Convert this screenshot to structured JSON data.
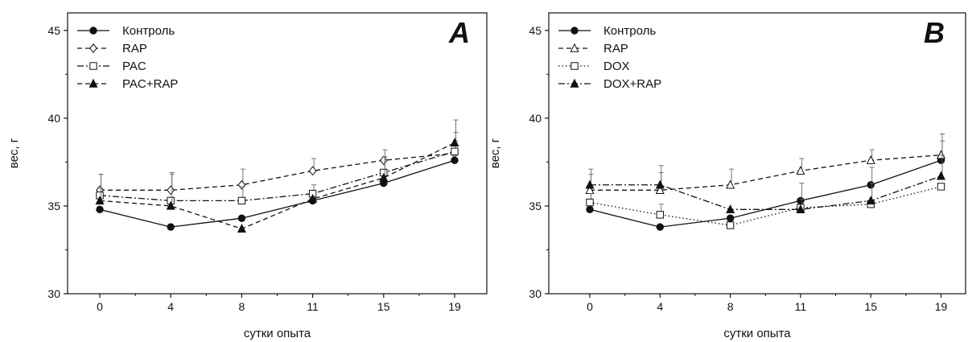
{
  "chart_data": [
    {
      "type": "line",
      "panel_label": "A",
      "xlabel": "сутки опыта",
      "ylabel": "вес, г",
      "categories": [
        "0",
        "4",
        "8",
        "11",
        "15",
        "19"
      ],
      "ylim": [
        30,
        46
      ],
      "yticks": [
        "30",
        "35",
        "40",
        "45"
      ],
      "grid": false,
      "legend_position": "top-left",
      "series": [
        {
          "name": "Контроль",
          "marker": "filled-circle",
          "dash": "solid",
          "values": [
            34.8,
            33.8,
            34.3,
            35.3,
            36.3,
            37.6
          ],
          "errors": [
            0,
            0,
            0,
            0,
            0,
            0
          ]
        },
        {
          "name": "RAP",
          "marker": "open-diamond",
          "dash": "dashed",
          "values": [
            35.9,
            35.9,
            36.2,
            37.0,
            37.6,
            38.0
          ],
          "errors": [
            0.9,
            1.0,
            0.9,
            0.7,
            0.6,
            0.7
          ]
        },
        {
          "name": "PAC",
          "marker": "open-square",
          "dash": "dashdot",
          "values": [
            35.6,
            35.3,
            35.3,
            35.7,
            36.9,
            38.1
          ],
          "errors": [
            1.2,
            0,
            0.8,
            0.5,
            0.9,
            1.1
          ]
        },
        {
          "name": "PAC+RAP",
          "marker": "filled-triangle",
          "dash": "dashed",
          "values": [
            35.3,
            35.0,
            33.7,
            35.4,
            36.6,
            38.6
          ],
          "errors": [
            0.7,
            1.8,
            0,
            0,
            1.2,
            1.3
          ]
        }
      ]
    },
    {
      "type": "line",
      "panel_label": "B",
      "xlabel": "сутки опыта",
      "ylabel": "вес, г",
      "categories": [
        "0",
        "4",
        "8",
        "11",
        "15",
        "19"
      ],
      "ylim": [
        30,
        46
      ],
      "yticks": [
        "30",
        "35",
        "40",
        "45"
      ],
      "grid": false,
      "legend_position": "top-left",
      "series": [
        {
          "name": "Контроль",
          "marker": "filled-circle",
          "dash": "solid",
          "values": [
            34.8,
            33.8,
            34.3,
            35.3,
            36.2,
            37.6
          ],
          "errors": [
            0,
            0,
            0,
            1.0,
            1.0,
            1.5
          ]
        },
        {
          "name": "RAP",
          "marker": "open-triangle",
          "dash": "dashed",
          "values": [
            35.9,
            35.9,
            36.2,
            37.0,
            37.6,
            37.9
          ],
          "errors": [
            0.9,
            1.0,
            0.9,
            0.7,
            0.6,
            0.8
          ]
        },
        {
          "name": "DOX",
          "marker": "open-square",
          "dash": "dotted",
          "values": [
            35.2,
            34.5,
            33.9,
            34.9,
            35.1,
            36.1
          ],
          "errors": [
            0.5,
            0.6,
            0,
            0.5,
            0,
            0
          ]
        },
        {
          "name": "DOX+RAP",
          "marker": "filled-triangle",
          "dash": "dashdot",
          "values": [
            36.2,
            36.2,
            34.8,
            34.8,
            35.3,
            36.7
          ],
          "errors": [
            0.9,
            1.1,
            0,
            0,
            1.0,
            1.2
          ]
        }
      ]
    }
  ]
}
